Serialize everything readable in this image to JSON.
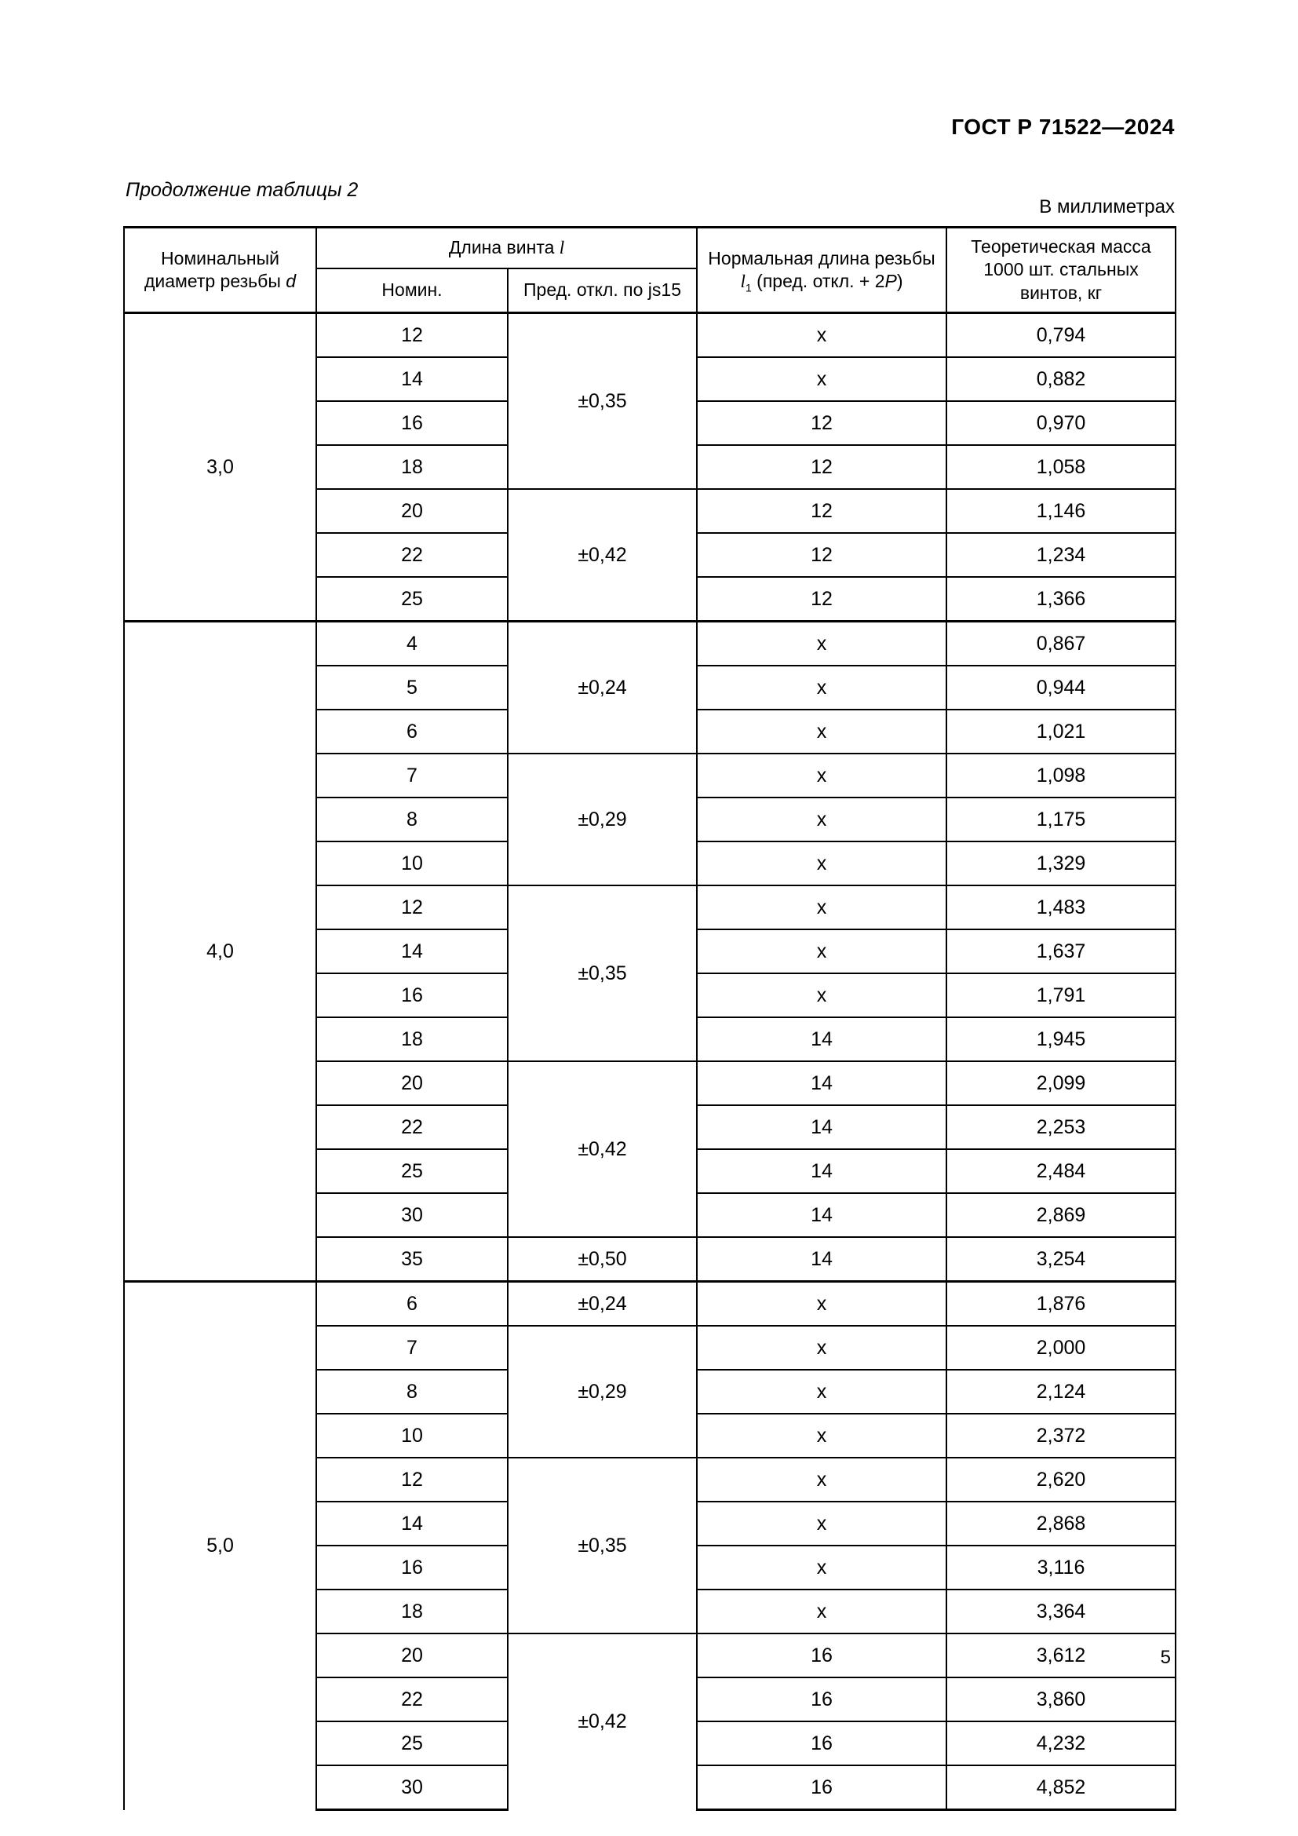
{
  "header": {
    "doc_number": "ГОСТ Р 71522—2024",
    "table_caption": "Продолжение таблицы 2",
    "units": "В миллиметрах"
  },
  "colors": {
    "ink": "#000000",
    "paper": "#ffffff"
  },
  "table": {
    "columns": {
      "diameter_label": "Номинальный диаметр резьбы",
      "diameter_symbol": "d",
      "length_group_label": "Длина винта",
      "length_symbol": "l",
      "nominal_label": "Номин.",
      "tolerance_label": "Пред. откл. по js15",
      "thread_length_label": "Нормальная длина резьбы",
      "thread_length_symbol": "l",
      "thread_length_subscript": "1",
      "thread_length_suffix": " (пред. откл. + 2",
      "pitch_symbol": "P",
      "thread_length_close": ")",
      "mass_label": "Теоретическая масса 1000 шт. стальных винтов, кг"
    },
    "groups": [
      {
        "d": "3,0",
        "continues": false,
        "tol_groups": [
          {
            "tol": "±0,35",
            "rows": [
              {
                "l": "12",
                "l1": "х",
                "m": "0,794"
              },
              {
                "l": "14",
                "l1": "х",
                "m": "0,882"
              },
              {
                "l": "16",
                "l1": "12",
                "m": "0,970"
              },
              {
                "l": "18",
                "l1": "12",
                "m": "1,058"
              }
            ]
          },
          {
            "tol": "±0,42",
            "rows": [
              {
                "l": "20",
                "l1": "12",
                "m": "1,146"
              },
              {
                "l": "22",
                "l1": "12",
                "m": "1,234"
              },
              {
                "l": "25",
                "l1": "12",
                "m": "1,366"
              }
            ]
          }
        ]
      },
      {
        "d": "4,0",
        "continues": false,
        "tol_groups": [
          {
            "tol": "±0,24",
            "rows": [
              {
                "l": "4",
                "l1": "х",
                "m": "0,867"
              },
              {
                "l": "5",
                "l1": "х",
                "m": "0,944"
              },
              {
                "l": "6",
                "l1": "х",
                "m": "1,021"
              }
            ]
          },
          {
            "tol": "±0,29",
            "rows": [
              {
                "l": "7",
                "l1": "х",
                "m": "1,098"
              },
              {
                "l": "8",
                "l1": "х",
                "m": "1,175"
              },
              {
                "l": "10",
                "l1": "х",
                "m": "1,329"
              }
            ]
          },
          {
            "tol": "±0,35",
            "rows": [
              {
                "l": "12",
                "l1": "х",
                "m": "1,483"
              },
              {
                "l": "14",
                "l1": "х",
                "m": "1,637"
              },
              {
                "l": "16",
                "l1": "х",
                "m": "1,791"
              },
              {
                "l": "18",
                "l1": "14",
                "m": "1,945"
              }
            ]
          },
          {
            "tol": "±0,42",
            "rows": [
              {
                "l": "20",
                "l1": "14",
                "m": "2,099"
              },
              {
                "l": "22",
                "l1": "14",
                "m": "2,253"
              },
              {
                "l": "25",
                "l1": "14",
                "m": "2,484"
              },
              {
                "l": "30",
                "l1": "14",
                "m": "2,869"
              }
            ]
          },
          {
            "tol": "±0,50",
            "rows": [
              {
                "l": "35",
                "l1": "14",
                "m": "3,254"
              }
            ]
          }
        ]
      },
      {
        "d": "5,0",
        "continues": true,
        "tol_groups": [
          {
            "tol": "±0,24",
            "rows": [
              {
                "l": "6",
                "l1": "х",
                "m": "1,876"
              }
            ]
          },
          {
            "tol": "±0,29",
            "rows": [
              {
                "l": "7",
                "l1": "х",
                "m": "2,000"
              },
              {
                "l": "8",
                "l1": "х",
                "m": "2,124"
              },
              {
                "l": "10",
                "l1": "х",
                "m": "2,372"
              }
            ]
          },
          {
            "tol": "±0,35",
            "rows": [
              {
                "l": "12",
                "l1": "х",
                "m": "2,620"
              },
              {
                "l": "14",
                "l1": "х",
                "m": "2,868"
              },
              {
                "l": "16",
                "l1": "х",
                "m": "3,116"
              },
              {
                "l": "18",
                "l1": "х",
                "m": "3,364"
              }
            ]
          },
          {
            "tol": "±0,42",
            "rows": [
              {
                "l": "20",
                "l1": "16",
                "m": "3,612"
              },
              {
                "l": "22",
                "l1": "16",
                "m": "3,860"
              },
              {
                "l": "25",
                "l1": "16",
                "m": "4,232"
              },
              {
                "l": "30",
                "l1": "16",
                "m": "4,852"
              }
            ]
          }
        ]
      }
    ]
  },
  "footer": {
    "page_number": "5"
  }
}
